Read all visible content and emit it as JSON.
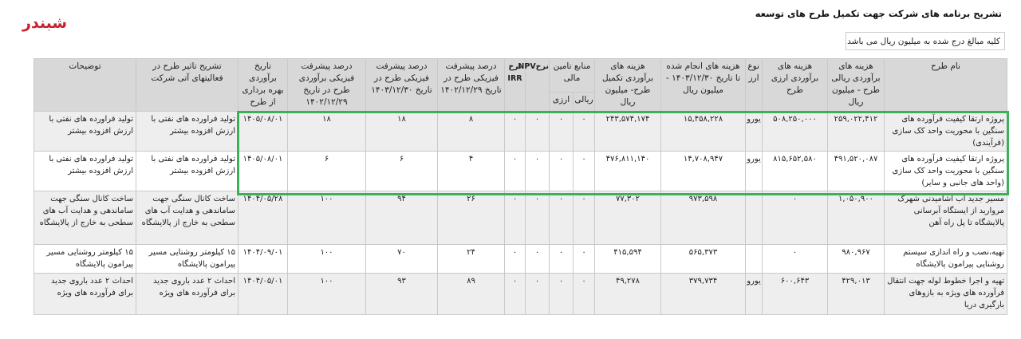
{
  "brand": "شبندر",
  "title": "تشریح برنامه های شرکت جهت تکمیل طرح های توسعه",
  "note": "کلیه مبالغ درج شده به میلیون ریال می باشد",
  "highlight_color": "#3cb054",
  "headers": {
    "name": "نام طرح",
    "rial_cost": "هزینه های برآوردی ریالی طرح - میلیون ریال",
    "fx_cost": "هزینه های برآوردی ارزی طرح",
    "currency": "نوع ارز",
    "spent": "هزینه های انجام شده تا تاریخ ۱۴۰۳/۱۲/۳۰ - میلیون ریال",
    "remaining": "هزینه های برآوردی تکمیل طرح- میلیون ریال",
    "funding": "منابع تامین مالی",
    "funding_rial": "ریالی",
    "funding_fx": "ارزی",
    "npv": "نرخNPV",
    "irr": "نرخ IRR",
    "progress_1402": "درصد پیشرفت فیزیکی طرح در تاریخ ۱۴۰۲/۱۲/۲۹",
    "progress_1403": "درصد پیشرفت فیزیکی طرح در تاریخ ۱۴۰۳/۱۲/۳۰",
    "progress_est": "درصد پیشرفت فیزیکی برآوردی طرح در تاریخ ۱۴۰۲/۱۲/۲۹",
    "op_date": "تاریخ برآوردی بهره برداری از طرح",
    "impact": "تشریح تاثیر طرح در فعالیتهای آتی شرکت",
    "notes": "توضیحات"
  },
  "rows": [
    {
      "name": "پروژه ارتقا کیفیت فرآورده های سنگین با محوریت واحد کک سازی (فرآیندی)",
      "rial_cost": "۲۵۹,۰۲۲,۴۱۲",
      "fx_cost": "۵۰۸,۲۵۰,۰۰۰",
      "currency": "یورو",
      "spent": "۱۵,۴۵۸,۲۲۸",
      "remaining": "۲۴۳,۵۷۴,۱۷۴",
      "funding_rial": "۰",
      "funding_fx": "۰",
      "npv": "۰",
      "irr": "۰",
      "progress_1402": "۸",
      "progress_1403": "۱۸",
      "progress_est": "۱۸",
      "op_date": "۱۴۰۵/۰۸/۰۱",
      "impact": "تولید فراورده های نفتی با ارزش افزوده بیشتر",
      "notes": "تولید فراورده های نفتی با ارزش افزوده بیشتر"
    },
    {
      "name": "پروژه ارتقا کیفیت فرآورده های سنگین با محوریت واحد کک سازی (واحد های جانبی و سایر)",
      "rial_cost": "۴۹۱,۵۲۰,۰۸۷",
      "fx_cost": "۸۱۵,۶۵۲,۵۸۰",
      "currency": "یورو",
      "spent": "۱۴,۷۰۸,۹۴۷",
      "remaining": "۴۷۶,۸۱۱,۱۴۰",
      "funding_rial": "۰",
      "funding_fx": "۰",
      "npv": "۰",
      "irr": "۰",
      "progress_1402": "۴",
      "progress_1403": "۶",
      "progress_est": "۶",
      "op_date": "۱۴۰۵/۰۸/۰۱",
      "impact": "تولید فراورده های نفتی با ارزش افزوده بیشتر",
      "notes": "تولید فراورده های نفتی با ارزش افزوده بیشتر"
    },
    {
      "name": "مسیر جدید آب آشامیدنی شهرک مروارید از ایستگاه آبرسانی پالایشگاه تا پل راه آهن",
      "rial_cost": "۱,۰۵۰,۹۰۰",
      "fx_cost": "۰",
      "currency": "",
      "spent": "۹۷۳,۵۹۸",
      "remaining": "۷۷,۳۰۲",
      "funding_rial": "۰",
      "funding_fx": "۰",
      "npv": "۰",
      "irr": "۰",
      "progress_1402": "۲۶",
      "progress_1403": "۹۴",
      "progress_est": "۱۰۰",
      "op_date": "۱۴۰۴/۰۵/۲۸",
      "impact": "ساخت کانال سنگی جهت ساماندهی و هدایت آب های سطحی به خارج از پالایشگاه",
      "notes": "ساخت کانال سنگی جهت ساماندهی و هدایت آب های سطحی به خارج از پالایشگاه"
    },
    {
      "name": "تهیه،نصب و راه اندازی سیستم روشنایی پیرامون پالایشگاه",
      "rial_cost": "۹۸۰,۹۶۷",
      "fx_cost": "۰",
      "currency": "",
      "spent": "۵۶۵,۳۷۳",
      "remaining": "۴۱۵,۵۹۴",
      "funding_rial": "۰",
      "funding_fx": "۰",
      "npv": "۰",
      "irr": "۰",
      "progress_1402": "۲۴",
      "progress_1403": "۷۰",
      "progress_est": "۱۰۰",
      "op_date": "۱۴۰۴/۰۹/۰۱",
      "impact": "۱۵ کیلومتر روشنایی مسیر پیرامون پالایشگاه",
      "notes": "۱۵ کیلومتر روشنایی مسیر پیرامون پالایشگاه"
    },
    {
      "name": "تهیه و اجرا خطوط لوله جهت انتقال فرآورده های ویژه به بازوهای بارگیری دریا",
      "rial_cost": "۴۲۹,۰۱۳",
      "fx_cost": "۶۰۰,۶۴۳",
      "currency": "یورو",
      "spent": "۳۷۹,۷۳۴",
      "remaining": "۴۹,۲۷۸",
      "funding_rial": "۰",
      "funding_fx": "۰",
      "npv": "۰",
      "irr": "۰",
      "progress_1402": "۸۹",
      "progress_1403": "۹۳",
      "progress_est": "۱۰۰",
      "op_date": "۱۴۰۴/۰۵/۰۱",
      "impact": "احداث ۲ عدد باروی جدید برای فرآورده های ویژه",
      "notes": "احداث ۲ عدد باروی جدید برای فرآورده های ویژه"
    }
  ]
}
